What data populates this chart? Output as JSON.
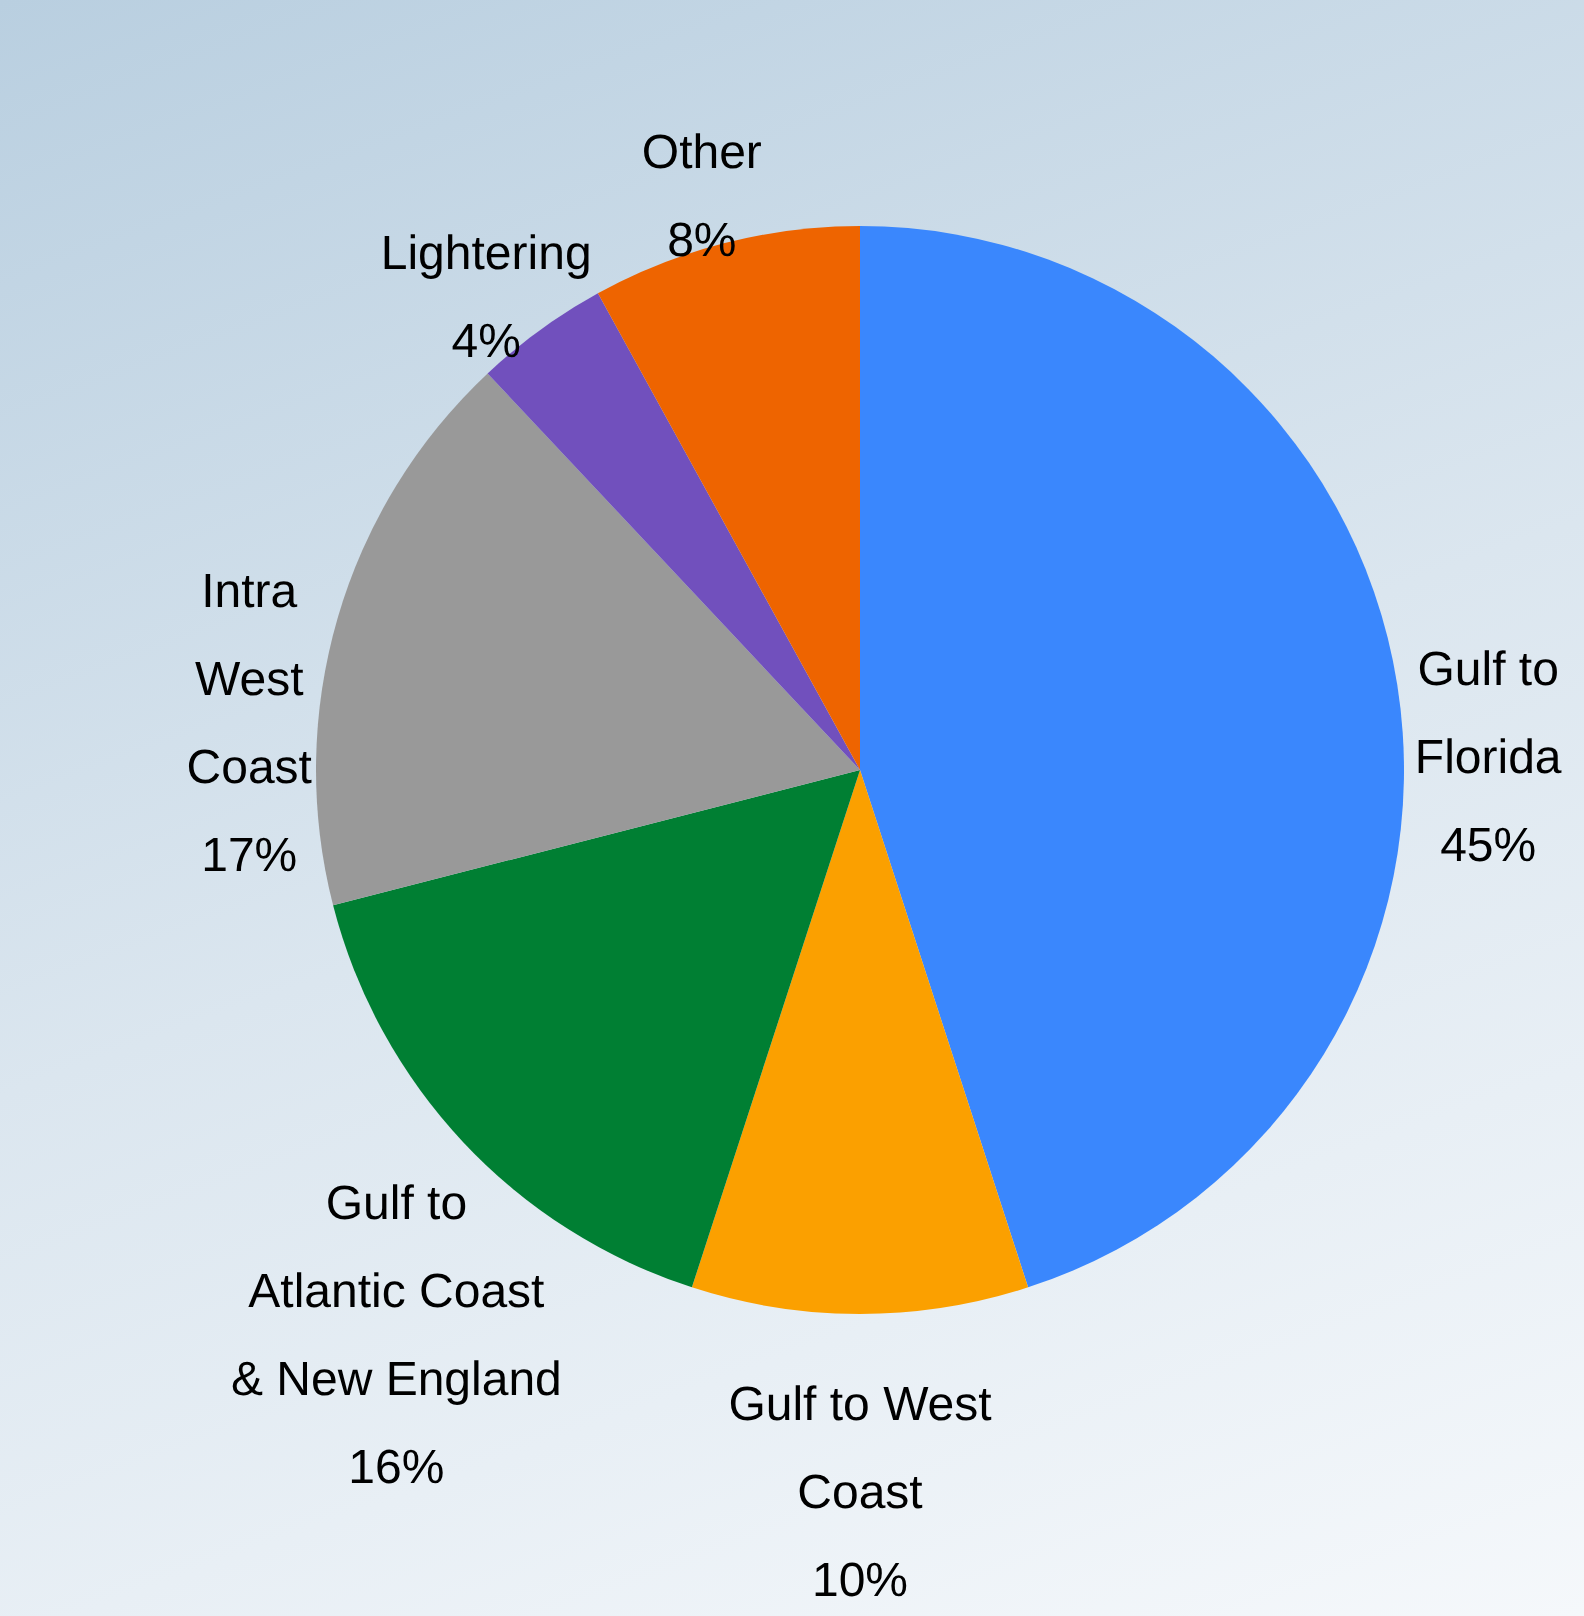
{
  "chart_data": {
    "type": "pie",
    "categories": [
      "Gulf to Florida",
      "Gulf to West Coast",
      "Gulf to Atlantic Coast & New England",
      "Intra West Coast",
      "Lightering",
      "Other"
    ],
    "values": [
      45,
      10,
      16,
      17,
      4,
      8
    ],
    "value_labels": [
      "45%",
      "10%",
      "16%",
      "17%",
      "4%",
      "8%"
    ],
    "colors": [
      "#3a87fd",
      "#fba000",
      "#007f33",
      "#999999",
      "#7150bd",
      "#ee6400"
    ]
  }
}
